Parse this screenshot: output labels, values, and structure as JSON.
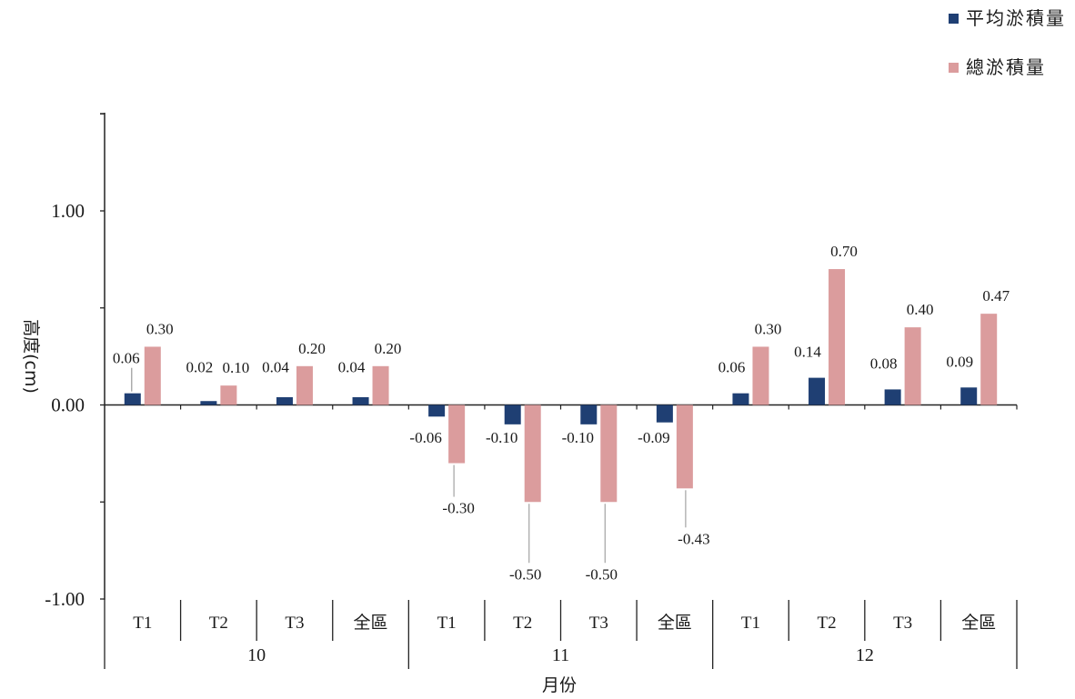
{
  "chart_data": {
    "type": "bar",
    "ylabel": "高度(cm)",
    "xlabel": "月份",
    "ylim": [
      -1.0,
      1.5
    ],
    "yticks": [
      -1.0,
      0.0,
      1.0
    ],
    "ytick_labels": [
      "-1.00",
      "0.00",
      "1.00"
    ],
    "legend_position": "top-right",
    "groups": [
      {
        "label": "10",
        "categories": [
          "T1",
          "T2",
          "T3",
          "全區"
        ]
      },
      {
        "label": "11",
        "categories": [
          "T1",
          "T2",
          "T3",
          "全區"
        ]
      },
      {
        "label": "12",
        "categories": [
          "T1",
          "T2",
          "T3",
          "全區"
        ]
      }
    ],
    "series": [
      {
        "name": "平均淤積量",
        "color": "#1f3f73",
        "values": [
          0.06,
          0.02,
          0.04,
          0.04,
          -0.06,
          -0.1,
          -0.1,
          -0.09,
          0.06,
          0.14,
          0.08,
          0.09
        ],
        "labels": [
          "0.06",
          "0.02",
          "0.04",
          "0.04",
          "-0.06",
          "-0.10",
          "-0.10",
          "-0.09",
          "0.06",
          "0.14",
          "0.08",
          "0.09"
        ]
      },
      {
        "name": "總淤積量",
        "color": "#db9c9d",
        "values": [
          0.3,
          0.1,
          0.2,
          0.2,
          -0.3,
          -0.5,
          -0.5,
          -0.43,
          0.3,
          0.7,
          0.4,
          0.47
        ],
        "labels": [
          "0.30",
          "0.10",
          "0.20",
          "0.20",
          "-0.30",
          "-0.50",
          "-0.50",
          "-0.43",
          "0.30",
          "0.70",
          "0.40",
          "0.47"
        ]
      }
    ]
  }
}
